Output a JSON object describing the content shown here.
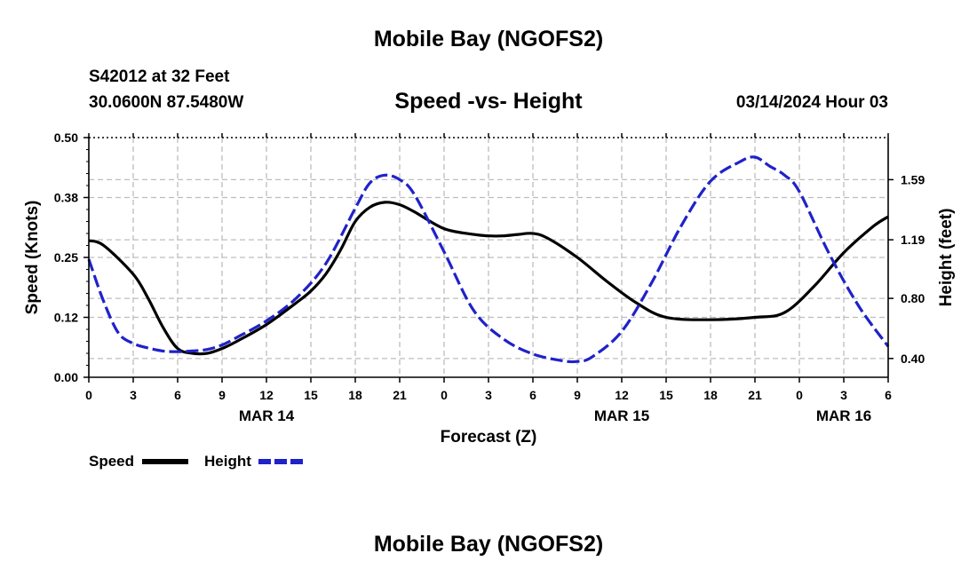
{
  "header": {
    "main_title": "Mobile Bay (NGOFS2)",
    "station": "S42012 at 32 Feet",
    "coords": "30.0600N  87.5480W",
    "run_time": "03/14/2024 Hour 03",
    "bottom_title": "Mobile Bay (NGOFS2)"
  },
  "legend": {
    "speed": "Speed",
    "height": "Height"
  },
  "colors": {
    "speed": "#000000",
    "height": "#1f22c9",
    "grid": "#bdbdbd"
  },
  "chart_data": {
    "type": "line",
    "title": "Speed -vs- Height",
    "xlabel": "Forecast (Z)",
    "ylabel": "Speed (Knots)",
    "ylabel_right": "Height (feet)",
    "x_range": [
      0,
      54
    ],
    "x_ticks": [
      0,
      3,
      6,
      9,
      12,
      15,
      18,
      21,
      24,
      27,
      30,
      33,
      36,
      39,
      42,
      45,
      48,
      51,
      54
    ],
    "x_tick_labels": [
      "0",
      "3",
      "6",
      "9",
      "12",
      "15",
      "18",
      "21",
      "0",
      "3",
      "6",
      "9",
      "12",
      "15",
      "18",
      "21",
      "0",
      "3",
      "6"
    ],
    "date_labels": [
      {
        "x": 12,
        "label": "MAR 14"
      },
      {
        "x": 36,
        "label": "MAR 15"
      },
      {
        "x": 51,
        "label": "MAR 16"
      }
    ],
    "ylim": [
      0,
      0.5
    ],
    "y_ticks": [
      0,
      0.125,
      0.25,
      0.375,
      0.5
    ],
    "y_tick_labels": [
      "0.00",
      "0.12",
      "0.25",
      "0.38",
      "0.50"
    ],
    "y2_ticks": [
      0.4,
      0.8,
      1.19,
      1.59
    ],
    "y2_tick_labels": [
      "0.40",
      "0.80",
      "1.19",
      "1.59"
    ],
    "y2_range_for_axis": [
      0.275,
      1.87
    ],
    "series": [
      {
        "name": "Speed",
        "axis": "left",
        "x": [
          0,
          1,
          3,
          4,
          5,
          6,
          7,
          8,
          9,
          10,
          12,
          14,
          15,
          16,
          17,
          18,
          19,
          20,
          21,
          22,
          24,
          26,
          27,
          28,
          29,
          30,
          31,
          33,
          35,
          37,
          39,
          42,
          45,
          47,
          49,
          51,
          53,
          54
        ],
        "values": [
          0.285,
          0.275,
          0.215,
          0.165,
          0.105,
          0.06,
          0.05,
          0.05,
          0.06,
          0.075,
          0.11,
          0.155,
          0.18,
          0.215,
          0.265,
          0.325,
          0.355,
          0.365,
          0.36,
          0.345,
          0.31,
          0.298,
          0.295,
          0.295,
          0.298,
          0.3,
          0.29,
          0.25,
          0.2,
          0.155,
          0.125,
          0.12,
          0.125,
          0.135,
          0.19,
          0.26,
          0.315,
          0.335
        ]
      },
      {
        "name": "Height",
        "axis": "right",
        "x": [
          0,
          1,
          2,
          3,
          4,
          5,
          6,
          7,
          8,
          9,
          10,
          12,
          14,
          16,
          18,
          19,
          20,
          21,
          22,
          24,
          26,
          28,
          30,
          32,
          33,
          34,
          36,
          38,
          40,
          42,
          44,
          45,
          46,
          47,
          48,
          50,
          52,
          54
        ],
        "values": [
          1.06,
          0.78,
          0.57,
          0.5,
          0.47,
          0.45,
          0.445,
          0.45,
          0.46,
          0.49,
          0.54,
          0.65,
          0.8,
          1.03,
          1.4,
          1.57,
          1.62,
          1.59,
          1.49,
          1.11,
          0.72,
          0.53,
          0.43,
          0.385,
          0.38,
          0.41,
          0.58,
          0.9,
          1.28,
          1.58,
          1.71,
          1.74,
          1.68,
          1.62,
          1.51,
          1.1,
          0.75,
          0.48
        ]
      }
    ]
  }
}
